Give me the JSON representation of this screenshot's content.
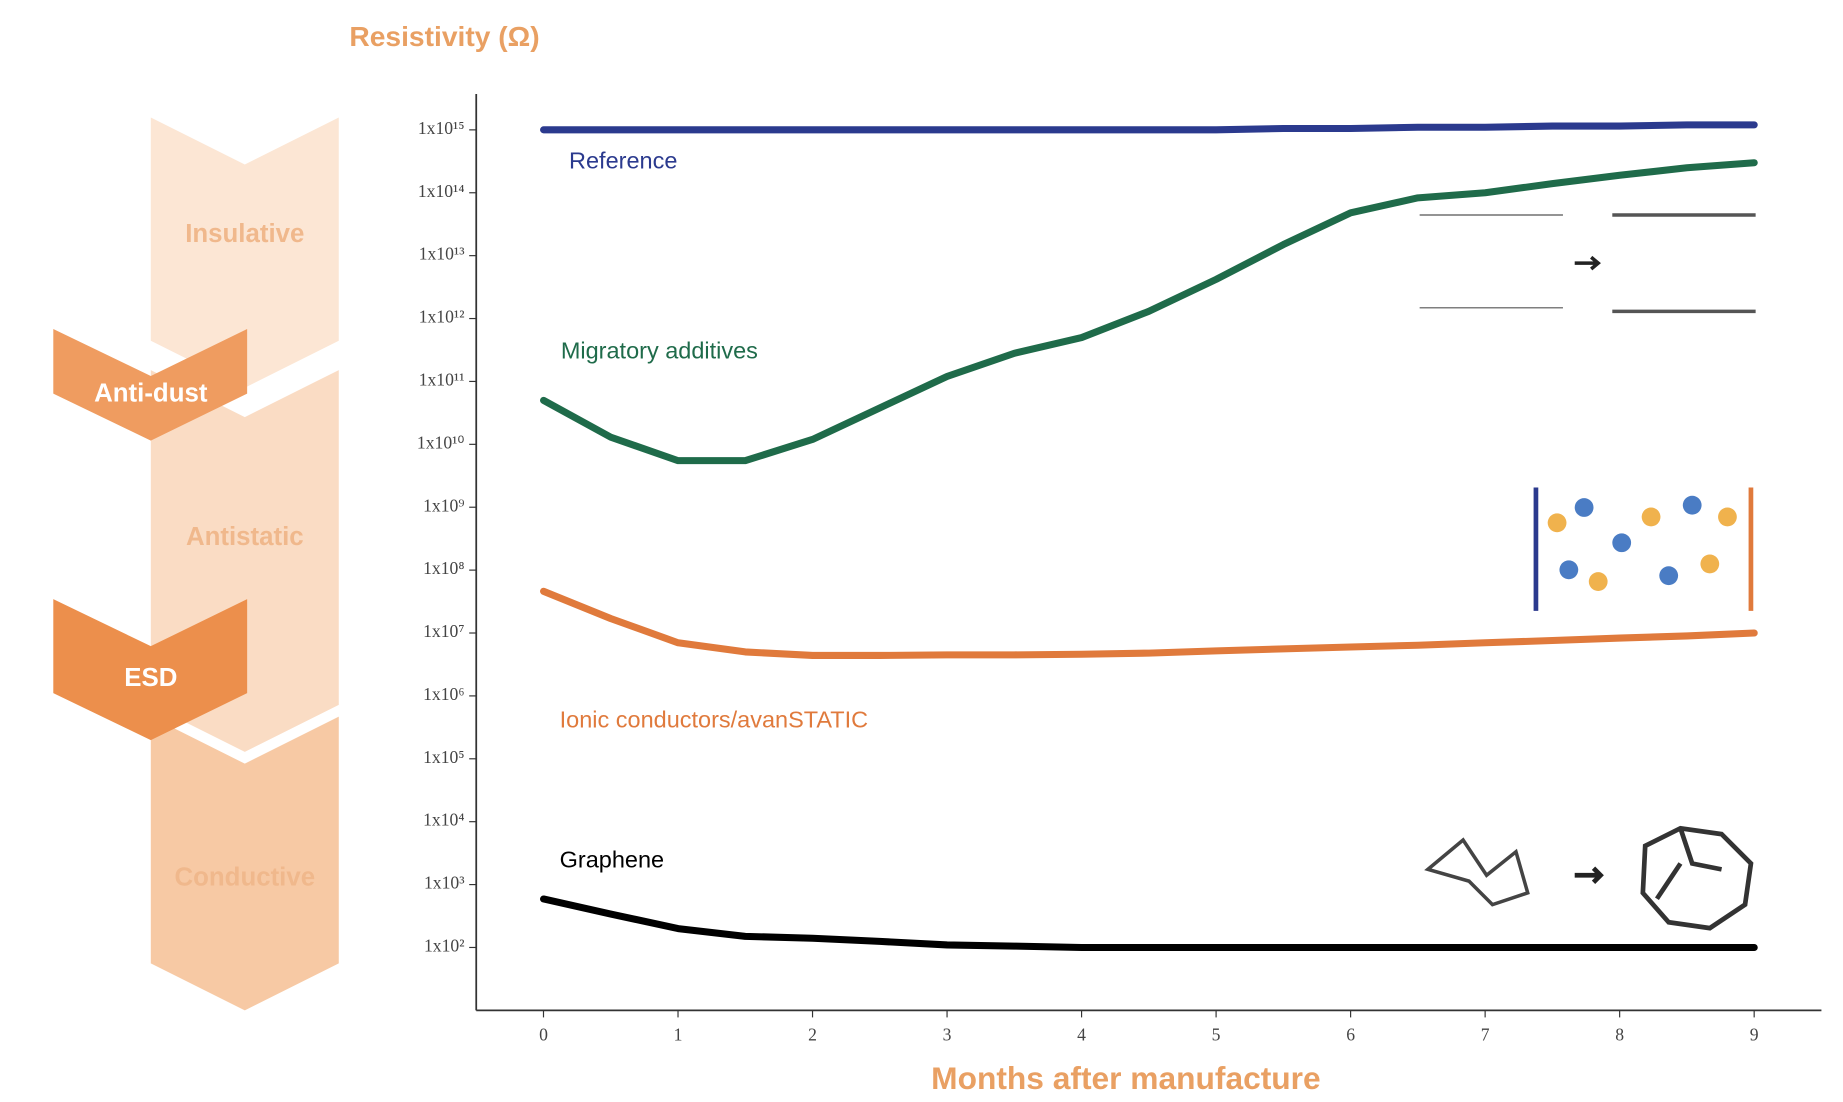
{
  "chart_data": {
    "type": "line",
    "y_label": "Resistivity (Ω)",
    "x_label": "Months after manufacture",
    "yscale": "log",
    "xlim": [
      -0.5,
      9.5
    ],
    "ylim": [
      10,
      3000000000000000.0
    ],
    "xticks": [
      0,
      1,
      2,
      3,
      4,
      5,
      6,
      7,
      8,
      9
    ],
    "yticks": [
      {
        "value": 1000000000000000.0,
        "label": "1x10¹⁵"
      },
      {
        "value": 100000000000000.0,
        "label": "1x10¹⁴"
      },
      {
        "value": 10000000000000.0,
        "label": "1x10¹³"
      },
      {
        "value": 1000000000000.0,
        "label": "1x10¹²"
      },
      {
        "value": 100000000000.0,
        "label": "1x10¹¹"
      },
      {
        "value": 10000000000.0,
        "label": "1x10¹⁰"
      },
      {
        "value": 1000000000.0,
        "label": "1x10⁹"
      },
      {
        "value": 100000000.0,
        "label": "1x10⁸"
      },
      {
        "value": 10000000.0,
        "label": "1x10⁷"
      },
      {
        "value": 1000000.0,
        "label": "1x10⁶"
      },
      {
        "value": 100000.0,
        "label": "1x10⁵"
      },
      {
        "value": 10000.0,
        "label": "1x10⁴"
      },
      {
        "value": 1000.0,
        "label": "1x10³"
      },
      {
        "value": 100,
        "label": "1x10²"
      }
    ],
    "regions": [
      "Insulative",
      "Anti-dust",
      "Antistatic",
      "ESD",
      "Conductive"
    ],
    "x": [
      0,
      0.5,
      1,
      1.5,
      2,
      2.5,
      3,
      3.5,
      4,
      4.5,
      5,
      5.5,
      6,
      6.5,
      7,
      7.5,
      8,
      8.5,
      9
    ],
    "series": [
      {
        "name": "Reference",
        "color": "#2b3a8e",
        "values": [
          1000000000000000.0,
          1000000000000000.0,
          1000000000000000.0,
          1000000000000000.0,
          1000000000000000.0,
          1000000000000000.0,
          1000000000000000.0,
          1000000000000000.0,
          1000000000000000.0,
          1000000000000000.0,
          1000000000000000.0,
          1050000000000000.0,
          1050000000000000.0,
          1100000000000000.0,
          1100000000000000.0,
          1150000000000000.0,
          1150000000000000.0,
          1200000000000000.0,
          1200000000000000.0
        ]
      },
      {
        "name": "Migratory additives",
        "color": "#1f6b4a",
        "values": [
          50000000000.0,
          13000000000.0,
          5500000000.0,
          5500000000.0,
          12000000000.0,
          38000000000.0,
          120000000000.0,
          280000000000.0,
          500000000000.0,
          1300000000000.0,
          4200000000000.0,
          15000000000000.0,
          48000000000000.0,
          83000000000000.0,
          100000000000000.0,
          140000000000000.0,
          190000000000000.0,
          250000000000000.0,
          300000000000000.0
        ]
      },
      {
        "name": "Ionic conductors/avanSTATIC",
        "color": "#e07a3c",
        "values": [
          46000000.0,
          17000000.0,
          7000000.0,
          5000000.0,
          4400000.0,
          4400000.0,
          4500000.0,
          4500000.0,
          4600000.0,
          4800000.0,
          5200000.0,
          5600000.0,
          6000000.0,
          6400000.0,
          7000000.0,
          7600000.0,
          8300000.0,
          9000000.0,
          10000000.0
        ]
      },
      {
        "name": "Graphene",
        "color": "#000000",
        "values": [
          590,
          340,
          200,
          150,
          140,
          125,
          110,
          105,
          100,
          100,
          100,
          100,
          100,
          100,
          100,
          100,
          100,
          100,
          100
        ]
      }
    ]
  }
}
